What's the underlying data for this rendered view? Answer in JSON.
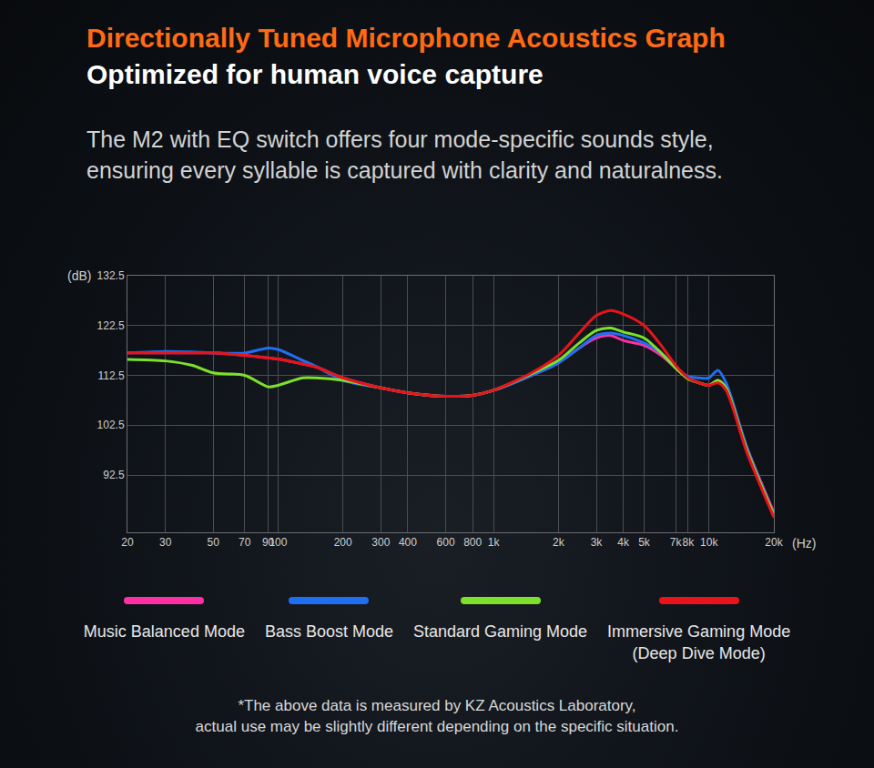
{
  "chart_data": {
    "type": "line",
    "title": "Directionally Tuned Microphone Acoustics Graph",
    "subtitle": "Optimized for human voice capture",
    "annotations": [
      "The M2 with EQ switch offers four mode-specific sounds style, ensuring every syllable is captured with clarity and naturalness.",
      "*The above data is measured by KZ Acoustics Laboratory,",
      "actual use may be slightly different depending on the specific situation."
    ],
    "ylabel": "(dB)",
    "xlabel": "(Hz)",
    "log": "x",
    "grid": true,
    "legend": "bottom",
    "line_style": "solid",
    "x": [
      20,
      30,
      40,
      50,
      70,
      90,
      100,
      130,
      150,
      200,
      300,
      400,
      600,
      800,
      1000,
      1500,
      2000,
      2500,
      3000,
      3500,
      4000,
      5000,
      6000,
      7000,
      8000,
      9000,
      10000,
      11000,
      12000,
      15000,
      20000
    ],
    "xlim": [
      20,
      20000
    ],
    "xticks": [
      20,
      30,
      50,
      70,
      90,
      100,
      200,
      300,
      400,
      600,
      800,
      {
        "value": 1000,
        "label": "1k"
      },
      {
        "value": 2000,
        "label": "2k"
      },
      {
        "value": 3000,
        "label": "3k"
      },
      {
        "value": 4000,
        "label": "4k"
      },
      {
        "value": 5000,
        "label": "5k"
      },
      {
        "value": 7000,
        "label": "7k"
      },
      {
        "value": 8000,
        "label": "8k"
      },
      {
        "value": 10000,
        "label": "10k"
      },
      {
        "value": 20000,
        "label": "20k"
      }
    ],
    "ylim": [
      81,
      132.5
    ],
    "yticks": [
      92.5,
      102.5,
      112.5,
      122.5,
      132.5
    ],
    "series": [
      {
        "name": "Music Balanced Mode",
        "color": "#ff2fa6",
        "values": [
          117,
          117,
          117,
          117,
          116.5,
          116,
          115.8,
          114.8,
          114.2,
          112,
          110,
          109,
          108.3,
          108.5,
          109.5,
          112.5,
          115,
          118,
          120,
          120.5,
          119.5,
          118.5,
          116.5,
          114,
          112,
          111,
          110.5,
          111.5,
          110,
          98,
          85
        ]
      },
      {
        "name": "Bass Boost Mode",
        "color": "#1f6ff2",
        "values": [
          117,
          117.3,
          117.2,
          117,
          117,
          118,
          117.7,
          115.5,
          114.3,
          111.5,
          110,
          109,
          108.3,
          108.5,
          109.5,
          112.5,
          115,
          118,
          120.5,
          121,
          120.5,
          119,
          117,
          114,
          112.3,
          112,
          112,
          113.5,
          111,
          98,
          84.5
        ]
      },
      {
        "name": "Standard Gaming Mode",
        "color": "#7ee02a",
        "values": [
          115.7,
          115.4,
          114.5,
          113,
          112.5,
          110.2,
          110.5,
          112,
          112,
          111.5,
          110,
          109,
          108.3,
          108.5,
          109.5,
          112.8,
          115.5,
          119,
          121.5,
          122,
          121.2,
          120,
          117,
          114,
          111.8,
          111,
          110.5,
          111.5,
          110,
          97.5,
          84.5
        ]
      },
      {
        "name": "Immersive Gaming Mode (Deep Dive Mode)",
        "color": "#e8131b",
        "values": [
          117,
          117,
          117,
          117,
          116.5,
          116,
          115.8,
          114.8,
          114.2,
          112,
          110,
          109,
          108.3,
          108.5,
          109.5,
          113,
          116.5,
          121,
          124.5,
          125.5,
          124.8,
          122.5,
          118.5,
          114.5,
          112,
          111,
          110.5,
          111,
          109.5,
          97,
          84
        ]
      }
    ]
  }
}
